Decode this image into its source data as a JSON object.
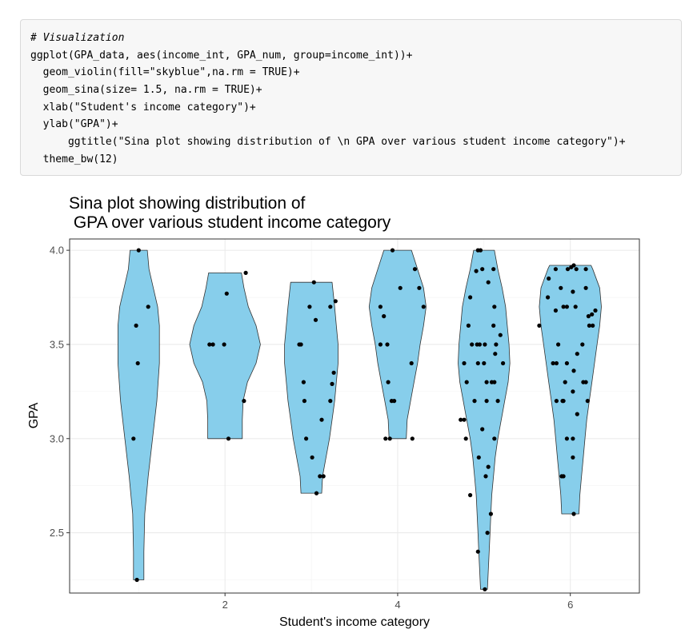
{
  "code": {
    "lines": [
      "# Visualization",
      "ggplot(GPA_data, aes(income_int, GPA_num, group=income_int))+",
      "  geom_violin(fill=\"skyblue\",na.rm = TRUE)+",
      "  geom_sina(size= 1.5, na.rm = TRUE)+",
      "  xlab(\"Student's income category\")+",
      "  ylab(\"GPA\")+",
      "      ggtitle(\"Sina plot showing distribution of \\n GPA over various student income category\")+",
      "  theme_bw(12)"
    ]
  },
  "chart_data": {
    "type": "sina",
    "title": "Sina plot showing distribution of\n GPA over various student income category",
    "title_lines": [
      "Sina plot showing distribution of",
      " GPA over various student income category"
    ],
    "xlabel": "Student's income category",
    "ylabel": "GPA",
    "xlim": [
      0.2,
      6.8
    ],
    "ylim": [
      2.18,
      4.06
    ],
    "xticks": [
      2,
      4,
      6
    ],
    "yticks": [
      2.5,
      3.0,
      3.5,
      4.0
    ],
    "ytick_labels": [
      "2.5",
      "3.0",
      "3.5",
      "4.0"
    ],
    "grid": true,
    "violin_fill": "#87ceeb",
    "point_color": "#000000",
    "groups": [
      {
        "x": 1,
        "range": [
          2.25,
          4.0
        ],
        "profile": [
          [
            2.25,
            0.06
          ],
          [
            2.4,
            0.06
          ],
          [
            2.6,
            0.07
          ],
          [
            2.8,
            0.11
          ],
          [
            3.0,
            0.16
          ],
          [
            3.2,
            0.21
          ],
          [
            3.4,
            0.24
          ],
          [
            3.6,
            0.24
          ],
          [
            3.7,
            0.22
          ],
          [
            3.8,
            0.17
          ],
          [
            3.9,
            0.12
          ],
          [
            4.0,
            0.1
          ]
        ],
        "points": [
          [
            1.0,
            4.0
          ],
          [
            0.98,
            2.25
          ],
          [
            1.11,
            3.7
          ],
          [
            0.97,
            3.6
          ],
          [
            0.99,
            3.4
          ],
          [
            0.94,
            3.0
          ]
        ]
      },
      {
        "x": 2,
        "range": [
          3.0,
          3.88
        ],
        "profile": [
          [
            3.0,
            0.2
          ],
          [
            3.1,
            0.2
          ],
          [
            3.2,
            0.21
          ],
          [
            3.3,
            0.26
          ],
          [
            3.4,
            0.36
          ],
          [
            3.5,
            0.41
          ],
          [
            3.6,
            0.36
          ],
          [
            3.7,
            0.27
          ],
          [
            3.8,
            0.22
          ],
          [
            3.88,
            0.19
          ]
        ],
        "points": [
          [
            2.24,
            3.88
          ],
          [
            2.02,
            3.77
          ],
          [
            1.82,
            3.5
          ],
          [
            1.86,
            3.5
          ],
          [
            1.99,
            3.5
          ],
          [
            2.22,
            3.2
          ],
          [
            2.04,
            3.0
          ]
        ]
      },
      {
        "x": 3,
        "range": [
          2.71,
          3.83
        ],
        "profile": [
          [
            2.71,
            0.12
          ],
          [
            2.8,
            0.13
          ],
          [
            2.9,
            0.17
          ],
          [
            3.0,
            0.21
          ],
          [
            3.1,
            0.24
          ],
          [
            3.2,
            0.27
          ],
          [
            3.3,
            0.29
          ],
          [
            3.4,
            0.31
          ],
          [
            3.5,
            0.31
          ],
          [
            3.6,
            0.29
          ],
          [
            3.7,
            0.27
          ],
          [
            3.83,
            0.24
          ]
        ],
        "points": [
          [
            3.03,
            3.83
          ],
          [
            3.28,
            3.73
          ],
          [
            3.22,
            3.7
          ],
          [
            2.98,
            3.7
          ],
          [
            3.05,
            3.63
          ],
          [
            2.86,
            3.5
          ],
          [
            2.88,
            3.5
          ],
          [
            3.26,
            3.35
          ],
          [
            2.91,
            3.3
          ],
          [
            3.24,
            3.29
          ],
          [
            2.92,
            3.2
          ],
          [
            3.22,
            3.2
          ],
          [
            3.12,
            3.1
          ],
          [
            2.94,
            3.0
          ],
          [
            3.01,
            2.9
          ],
          [
            3.1,
            2.8
          ],
          [
            3.14,
            2.8
          ],
          [
            3.06,
            2.71
          ]
        ]
      },
      {
        "x": 4,
        "range": [
          3.0,
          4.0
        ],
        "profile": [
          [
            3.0,
            0.1
          ],
          [
            3.1,
            0.11
          ],
          [
            3.2,
            0.15
          ],
          [
            3.3,
            0.19
          ],
          [
            3.4,
            0.23
          ],
          [
            3.5,
            0.26
          ],
          [
            3.6,
            0.3
          ],
          [
            3.7,
            0.33
          ],
          [
            3.8,
            0.3
          ],
          [
            3.9,
            0.23
          ],
          [
            4.0,
            0.16
          ]
        ],
        "points": [
          [
            3.94,
            4.0
          ],
          [
            4.2,
            3.9
          ],
          [
            4.03,
            3.8
          ],
          [
            4.25,
            3.8
          ],
          [
            3.8,
            3.7
          ],
          [
            4.3,
            3.7
          ],
          [
            3.84,
            3.65
          ],
          [
            3.8,
            3.5
          ],
          [
            3.88,
            3.5
          ],
          [
            4.16,
            3.4
          ],
          [
            3.89,
            3.3
          ],
          [
            3.93,
            3.2
          ],
          [
            3.96,
            3.2
          ],
          [
            3.86,
            3.0
          ],
          [
            3.91,
            3.0
          ],
          [
            4.17,
            3.0
          ]
        ]
      },
      {
        "x": 5,
        "range": [
          2.2,
          4.0
        ],
        "profile": [
          [
            2.2,
            0.04
          ],
          [
            2.3,
            0.05
          ],
          [
            2.4,
            0.06
          ],
          [
            2.5,
            0.07
          ],
          [
            2.6,
            0.08
          ],
          [
            2.7,
            0.09
          ],
          [
            2.8,
            0.11
          ],
          [
            2.9,
            0.13
          ],
          [
            3.0,
            0.16
          ],
          [
            3.1,
            0.2
          ],
          [
            3.2,
            0.24
          ],
          [
            3.3,
            0.28
          ],
          [
            3.4,
            0.3
          ],
          [
            3.5,
            0.29
          ],
          [
            3.6,
            0.27
          ],
          [
            3.7,
            0.25
          ],
          [
            3.8,
            0.21
          ],
          [
            3.9,
            0.16
          ],
          [
            4.0,
            0.12
          ]
        ],
        "points": [
          [
            4.93,
            4.0
          ],
          [
            4.96,
            4.0
          ],
          [
            5.11,
            3.9
          ],
          [
            4.98,
            3.9
          ],
          [
            4.91,
            3.89
          ],
          [
            5.05,
            3.83
          ],
          [
            4.84,
            3.75
          ],
          [
            5.12,
            3.7
          ],
          [
            5.11,
            3.6
          ],
          [
            4.82,
            3.6
          ],
          [
            5.19,
            3.55
          ],
          [
            5.14,
            3.5
          ],
          [
            4.86,
            3.5
          ],
          [
            4.92,
            3.5
          ],
          [
            4.95,
            3.5
          ],
          [
            5.01,
            3.5
          ],
          [
            5.13,
            3.45
          ],
          [
            4.93,
            3.4
          ],
          [
            5.0,
            3.4
          ],
          [
            5.22,
            3.4
          ],
          [
            4.77,
            3.4
          ],
          [
            5.03,
            3.3
          ],
          [
            5.09,
            3.3
          ],
          [
            5.12,
            3.3
          ],
          [
            4.8,
            3.3
          ],
          [
            5.16,
            3.2
          ],
          [
            4.89,
            3.2
          ],
          [
            5.03,
            3.2
          ],
          [
            4.73,
            3.1
          ],
          [
            4.77,
            3.1
          ],
          [
            4.98,
            3.05
          ],
          [
            5.12,
            3.0
          ],
          [
            4.79,
            3.0
          ],
          [
            4.94,
            2.9
          ],
          [
            5.05,
            2.85
          ],
          [
            5.02,
            2.8
          ],
          [
            4.84,
            2.7
          ],
          [
            5.08,
            2.6
          ],
          [
            5.04,
            2.5
          ],
          [
            4.93,
            2.4
          ],
          [
            5.01,
            2.2
          ]
        ]
      },
      {
        "x": 6,
        "range": [
          2.6,
          3.92
        ],
        "profile": [
          [
            2.6,
            0.1
          ],
          [
            2.7,
            0.11
          ],
          [
            2.8,
            0.13
          ],
          [
            2.9,
            0.15
          ],
          [
            3.0,
            0.17
          ],
          [
            3.1,
            0.19
          ],
          [
            3.2,
            0.22
          ],
          [
            3.3,
            0.25
          ],
          [
            3.4,
            0.28
          ],
          [
            3.5,
            0.31
          ],
          [
            3.6,
            0.34
          ],
          [
            3.7,
            0.36
          ],
          [
            3.8,
            0.34
          ],
          [
            3.9,
            0.26
          ],
          [
            3.92,
            0.24
          ]
        ],
        "points": [
          [
            6.04,
            3.92
          ],
          [
            6.01,
            3.91
          ],
          [
            6.07,
            3.9
          ],
          [
            5.97,
            3.9
          ],
          [
            5.83,
            3.9
          ],
          [
            6.18,
            3.9
          ],
          [
            5.75,
            3.85
          ],
          [
            6.18,
            3.8
          ],
          [
            5.89,
            3.8
          ],
          [
            6.03,
            3.78
          ],
          [
            5.74,
            3.75
          ],
          [
            5.92,
            3.7
          ],
          [
            5.96,
            3.7
          ],
          [
            6.06,
            3.7
          ],
          [
            6.29,
            3.68
          ],
          [
            5.83,
            3.68
          ],
          [
            6.25,
            3.66
          ],
          [
            6.21,
            3.65
          ],
          [
            5.64,
            3.6
          ],
          [
            6.22,
            3.6
          ],
          [
            6.26,
            3.6
          ],
          [
            6.14,
            3.5
          ],
          [
            5.86,
            3.5
          ],
          [
            6.08,
            3.45
          ],
          [
            5.8,
            3.4
          ],
          [
            5.84,
            3.4
          ],
          [
            5.96,
            3.4
          ],
          [
            6.04,
            3.36
          ],
          [
            5.94,
            3.3
          ],
          [
            6.15,
            3.3
          ],
          [
            6.18,
            3.3
          ],
          [
            6.03,
            3.25
          ],
          [
            5.84,
            3.2
          ],
          [
            5.91,
            3.2
          ],
          [
            5.92,
            3.2
          ],
          [
            6.2,
            3.2
          ],
          [
            6.08,
            3.13
          ],
          [
            6.03,
            3.0
          ],
          [
            5.96,
            3.0
          ],
          [
            6.03,
            2.9
          ],
          [
            5.9,
            2.8
          ],
          [
            5.92,
            2.8
          ],
          [
            6.04,
            2.6
          ]
        ]
      }
    ]
  }
}
